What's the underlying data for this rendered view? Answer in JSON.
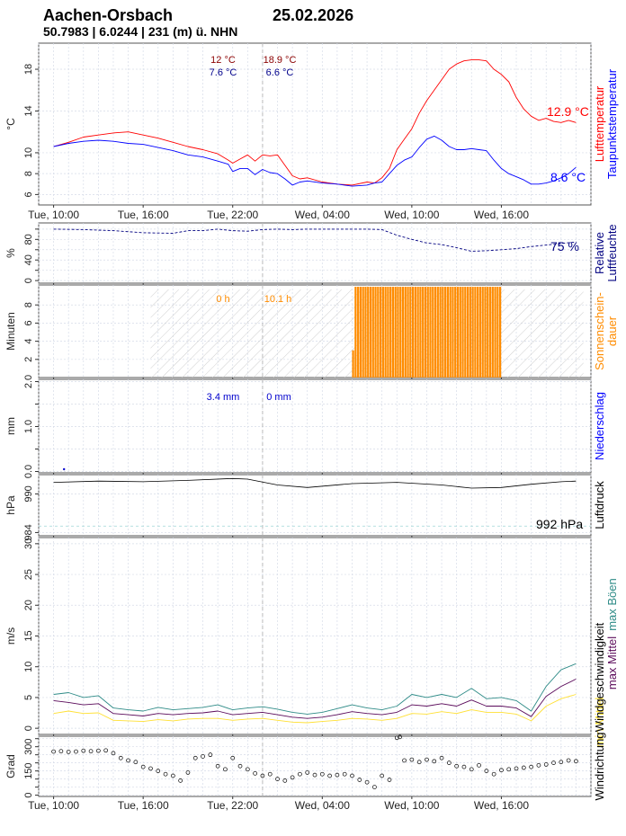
{
  "header": {
    "station": "Aachen-Orsbach",
    "date": "25.02.2026",
    "coords": "50.7983 | 6.0244 | 231 (m) ü. NHN"
  },
  "x_axis": {
    "tick_labels": [
      "Tue, 10:00",
      "Tue, 16:00",
      "Tue, 22:00",
      "Wed, 04:00",
      "Wed, 10:00",
      "Wed, 16:00"
    ],
    "tick_hours": [
      10,
      16,
      22,
      28,
      34,
      40
    ],
    "range_hours": [
      9,
      46
    ],
    "midnight_hour": 24
  },
  "colors": {
    "temp": "#ff0000",
    "dew": "#0000ff",
    "humidity": "#000080",
    "sun": "#ff8c00",
    "sun_text": "#ff8c00",
    "rain": "#0000cd",
    "pressure": "#000000",
    "wind_mean": "#ffe033",
    "wind_maxmean": "#5a0a5a",
    "wind_gust": "#2e8b87",
    "dir_points": "#000000"
  },
  "chart_data": [
    {
      "type": "line",
      "id": "temperature",
      "ylabel": "°C",
      "yticks": [
        6,
        8,
        10,
        14,
        18
      ],
      "ylim": [
        5,
        20.5
      ],
      "side_labels": [
        "Lufttemperatur",
        "Taupunktstemperatur"
      ],
      "summary": {
        "temp_tue": "12 °C",
        "temp_wed": "18.9 °C",
        "dew_tue": "7.6 °C",
        "dew_wed": "6.6 °C",
        "temp_current": "12.9 °C",
        "dew_current": "8.6 °C"
      },
      "series": [
        {
          "name": "Lufttemperatur",
          "x": [
            10.0,
            11.0,
            12.0,
            13.0,
            14.0,
            15.0,
            16.0,
            17.0,
            18.0,
            19.0,
            20.0,
            21.0,
            21.7,
            22.0,
            22.5,
            23.0,
            23.5,
            24.0,
            24.5,
            25.0,
            25.5,
            26.0,
            26.5,
            27.0,
            28.0,
            29.0,
            30.0,
            31.0,
            31.5,
            32.0,
            32.5,
            33.0,
            33.5,
            34.0,
            34.5,
            35.0,
            35.5,
            36.0,
            36.5,
            37.0,
            37.5,
            38.0,
            38.5,
            39.0,
            39.5,
            40.0,
            40.5,
            41.0,
            41.5,
            42.0,
            42.5,
            43.0,
            43.5,
            44.0,
            44.5,
            45.0
          ],
          "y": [
            10.6,
            11.0,
            11.5,
            11.7,
            11.9,
            12.0,
            11.7,
            11.4,
            11.0,
            10.6,
            10.3,
            9.9,
            9.3,
            9.0,
            9.4,
            9.8,
            9.2,
            9.8,
            9.7,
            9.8,
            8.8,
            7.8,
            7.5,
            7.6,
            7.2,
            7.0,
            6.9,
            7.2,
            7.1,
            7.6,
            8.5,
            10.3,
            11.3,
            12.3,
            13.8,
            15.0,
            16.0,
            17.0,
            18.0,
            18.5,
            18.8,
            18.9,
            18.9,
            18.8,
            18.0,
            17.5,
            16.8,
            15.3,
            14.2,
            13.5,
            13.1,
            13.3,
            13.0,
            12.9,
            13.1,
            12.9
          ]
        },
        {
          "name": "Taupunktstemperatur",
          "x": [
            10.0,
            11.0,
            12.0,
            13.0,
            14.0,
            15.0,
            16.0,
            17.0,
            18.0,
            19.0,
            20.0,
            21.0,
            21.7,
            22.0,
            22.5,
            23.0,
            23.5,
            24.0,
            24.5,
            25.0,
            25.5,
            26.0,
            26.5,
            27.0,
            28.0,
            29.0,
            30.0,
            31.0,
            31.5,
            32.0,
            32.5,
            33.0,
            33.5,
            34.0,
            34.5,
            35.0,
            35.5,
            36.0,
            36.5,
            37.0,
            37.5,
            38.0,
            38.5,
            39.0,
            39.5,
            40.0,
            40.5,
            41.0,
            41.5,
            42.0,
            42.5,
            43.0,
            43.5,
            44.0,
            44.5,
            45.0
          ],
          "y": [
            10.6,
            10.9,
            11.1,
            11.2,
            11.1,
            10.9,
            10.8,
            10.5,
            10.2,
            9.8,
            9.6,
            9.2,
            8.9,
            8.2,
            8.5,
            8.5,
            7.9,
            8.4,
            8.1,
            8.0,
            7.5,
            6.9,
            7.2,
            7.3,
            7.1,
            7.0,
            6.8,
            6.9,
            7.1,
            7.2,
            8.0,
            8.8,
            9.3,
            9.6,
            10.5,
            11.3,
            11.6,
            11.2,
            10.6,
            10.3,
            10.3,
            10.4,
            10.3,
            10.2,
            9.3,
            8.5,
            8.0,
            7.7,
            7.4,
            7.0,
            7.0,
            7.1,
            7.3,
            7.6,
            8.0,
            8.6
          ]
        }
      ]
    },
    {
      "type": "line",
      "id": "humidity",
      "ylabel": "%",
      "yticks": [
        0,
        20,
        40,
        60,
        80,
        100
      ],
      "ytick_labels": [
        "0",
        "40",
        "80"
      ],
      "ylim": [
        -5,
        112
      ],
      "side_labels": [
        "Relative",
        "Luftfeuchte"
      ],
      "summary": {
        "current": "75 %"
      },
      "series": [
        {
          "name": "Relative Luftfeuchte",
          "x": [
            10.0,
            12.0,
            14.0,
            16.0,
            18.0,
            19.0,
            20.0,
            21.0,
            22.0,
            23.0,
            24.0,
            25.0,
            26.0,
            27.0,
            28.0,
            29.0,
            30.0,
            31.0,
            32.0,
            33.0,
            34.0,
            35.0,
            36.0,
            37.0,
            38.0,
            39.0,
            40.0,
            41.0,
            42.0,
            43.0,
            44.0,
            45.0
          ],
          "y": [
            100,
            99,
            97,
            93,
            92,
            97,
            97,
            100,
            97,
            96,
            99,
            100,
            99,
            100,
            100,
            100,
            100,
            100,
            99,
            88,
            80,
            73,
            70,
            64,
            57,
            58,
            60,
            62,
            66,
            69,
            72,
            75
          ]
        }
      ]
    },
    {
      "type": "bar",
      "id": "sunshine",
      "ylabel": "Minuten",
      "yticks": [
        2,
        4,
        6,
        8
      ],
      "ylim": [
        0,
        10.2
      ],
      "side_labels": [
        "Sonnenschein-",
        "dauer"
      ],
      "night_hatch_hours": [
        16.5,
        45.5
      ],
      "summary": {
        "tue": "0 h",
        "wed": "10.1 h"
      },
      "bars": {
        "x_start": 30.0,
        "x_end": 40.0,
        "step_hours": 0.167,
        "first_value": 3,
        "value": 10
      }
    },
    {
      "type": "bar",
      "id": "precipitation",
      "ylabel": "mm",
      "yticks": [
        0.0,
        0.5,
        1.0,
        1.5,
        2.0
      ],
      "ytick_labels": [
        "0.0",
        "1.0",
        "2.0"
      ],
      "ylim": [
        -0.03,
        2.05
      ],
      "side_labels": [
        "Niederschlag"
      ],
      "summary": {
        "tue": "3.4 mm",
        "wed": "0 mm"
      },
      "points": {
        "x": [
          10.7
        ],
        "y": [
          0.05
        ]
      }
    },
    {
      "type": "line",
      "id": "pressure",
      "ylabel": "hPa",
      "yticks": [
        984,
        990
      ],
      "ylim": [
        983.5,
        993
      ],
      "reference_line": 985,
      "side_labels": [
        "Luftdruck"
      ],
      "summary": {
        "current": "992 hPa"
      },
      "series": [
        {
          "name": "Luftdruck",
          "x": [
            10.0,
            13.0,
            16.0,
            19.0,
            22.0,
            23.0,
            25.0,
            27.0,
            30.0,
            33.0,
            36.0,
            38.0,
            40.0,
            42.0,
            44.0,
            45.0
          ],
          "y": [
            991.8,
            992.0,
            991.9,
            992.1,
            992.4,
            992.3,
            991.4,
            991.0,
            991.6,
            991.8,
            991.4,
            990.9,
            991.0,
            991.5,
            991.9,
            992.0
          ]
        }
      ]
    },
    {
      "type": "line",
      "id": "wind",
      "ylabel": "m/s",
      "yticks": [
        0,
        5,
        10,
        15,
        20,
        25,
        30
      ],
      "ylim": [
        -1,
        31
      ],
      "side_labels": [
        "min Mittel",
        "Windgeschwindigkeit",
        "max Mittel",
        "max Böen"
      ],
      "series": [
        {
          "name": "max Böen",
          "x": [
            10.0,
            11.0,
            12.0,
            13.0,
            14.0,
            15.0,
            16.0,
            17.0,
            18.0,
            19.0,
            20.0,
            21.0,
            22.0,
            23.0,
            24.0,
            25.0,
            26.0,
            27.0,
            28.0,
            29.0,
            30.0,
            31.0,
            32.0,
            33.0,
            34.0,
            35.0,
            36.0,
            37.0,
            38.0,
            39.0,
            40.0,
            41.0,
            42.0,
            43.0,
            44.0,
            45.0
          ],
          "y": [
            5.5,
            5.8,
            5.0,
            5.3,
            3.3,
            3.0,
            2.8,
            3.4,
            3.0,
            3.2,
            3.4,
            3.8,
            3.0,
            3.3,
            3.5,
            3.1,
            2.6,
            2.3,
            2.6,
            3.2,
            3.8,
            3.3,
            3.0,
            3.6,
            5.5,
            5.0,
            5.5,
            5.0,
            6.5,
            4.8,
            5.0,
            4.5,
            2.8,
            6.8,
            9.5,
            10.5
          ]
        },
        {
          "name": "max Mittel",
          "x": [
            10.0,
            11.0,
            12.0,
            13.0,
            14.0,
            15.0,
            16.0,
            17.0,
            18.0,
            19.0,
            20.0,
            21.0,
            22.0,
            23.0,
            24.0,
            25.0,
            26.0,
            27.0,
            28.0,
            29.0,
            30.0,
            31.0,
            32.0,
            33.0,
            34.0,
            35.0,
            36.0,
            37.0,
            38.0,
            39.0,
            40.0,
            41.0,
            42.0,
            43.0,
            44.0,
            45.0
          ],
          "y": [
            4.5,
            4.2,
            3.8,
            4.0,
            2.4,
            2.2,
            2.0,
            2.4,
            2.2,
            2.4,
            2.5,
            2.8,
            2.2,
            2.4,
            2.6,
            2.2,
            1.8,
            1.6,
            1.8,
            2.2,
            2.7,
            2.4,
            2.2,
            2.6,
            3.8,
            3.6,
            4.0,
            3.6,
            4.6,
            3.6,
            3.6,
            3.3,
            1.9,
            5.2,
            6.8,
            8.0
          ]
        },
        {
          "name": "min Mittel",
          "x": [
            10.0,
            11.0,
            12.0,
            13.0,
            14.0,
            15.0,
            16.0,
            17.0,
            18.0,
            19.0,
            20.0,
            21.0,
            22.0,
            23.0,
            24.0,
            25.0,
            26.0,
            27.0,
            28.0,
            29.0,
            30.0,
            31.0,
            32.0,
            33.0,
            34.0,
            35.0,
            36.0,
            37.0,
            38.0,
            39.0,
            40.0,
            41.0,
            42.0,
            43.0,
            44.0,
            45.0
          ],
          "y": [
            2.4,
            2.8,
            2.4,
            2.5,
            1.3,
            1.2,
            1.1,
            1.4,
            1.2,
            1.5,
            1.6,
            1.6,
            1.3,
            1.5,
            1.6,
            1.3,
            1.0,
            0.9,
            1.1,
            1.3,
            1.6,
            1.5,
            1.3,
            1.6,
            2.4,
            2.3,
            2.7,
            2.4,
            3.0,
            2.6,
            2.6,
            2.3,
            1.2,
            3.6,
            4.8,
            5.5
          ]
        }
      ]
    },
    {
      "type": "scatter",
      "id": "wind_direction",
      "ylabel": "Grad",
      "yticks": [
        0,
        50,
        100,
        150,
        200,
        250,
        300,
        350
      ],
      "ytick_labels": [
        "0",
        "150",
        "300"
      ],
      "ylim": [
        -8,
        365
      ],
      "side_labels": [
        "Windrichtung"
      ],
      "points": {
        "x": [
          10.0,
          10.5,
          11.0,
          11.5,
          12.0,
          12.5,
          13.0,
          13.5,
          14.0,
          14.5,
          15.0,
          15.5,
          16.0,
          16.5,
          17.0,
          17.5,
          18.0,
          18.5,
          19.0,
          19.5,
          20.0,
          20.5,
          21.0,
          21.5,
          22.0,
          22.5,
          23.0,
          23.5,
          24.0,
          24.5,
          25.0,
          25.5,
          26.0,
          26.5,
          27.0,
          27.5,
          28.0,
          28.5,
          29.0,
          29.5,
          30.0,
          30.5,
          31.0,
          31.5,
          32.0,
          32.5,
          33.0,
          33.2,
          33.5,
          34.0,
          34.5,
          35.0,
          35.5,
          36.0,
          36.5,
          37.0,
          37.5,
          38.0,
          38.5,
          39.0,
          39.5,
          40.0,
          40.5,
          41.0,
          41.5,
          42.0,
          42.5,
          43.0,
          43.5,
          44.0,
          44.5,
          45.0
        ],
        "y": [
          270,
          272,
          268,
          270,
          275,
          272,
          275,
          277,
          260,
          230,
          215,
          205,
          175,
          165,
          150,
          130,
          120,
          90,
          140,
          230,
          240,
          250,
          180,
          160,
          230,
          180,
          160,
          135,
          120,
          130,
          100,
          90,
          110,
          130,
          140,
          125,
          130,
          120,
          125,
          130,
          120,
          95,
          80,
          50,
          120,
          95,
          355,
          360,
          215,
          220,
          205,
          220,
          210,
          230,
          200,
          180,
          175,
          160,
          185,
          150,
          130,
          155,
          160,
          165,
          170,
          175,
          185,
          190,
          200,
          205,
          215,
          210
        ]
      }
    }
  ]
}
